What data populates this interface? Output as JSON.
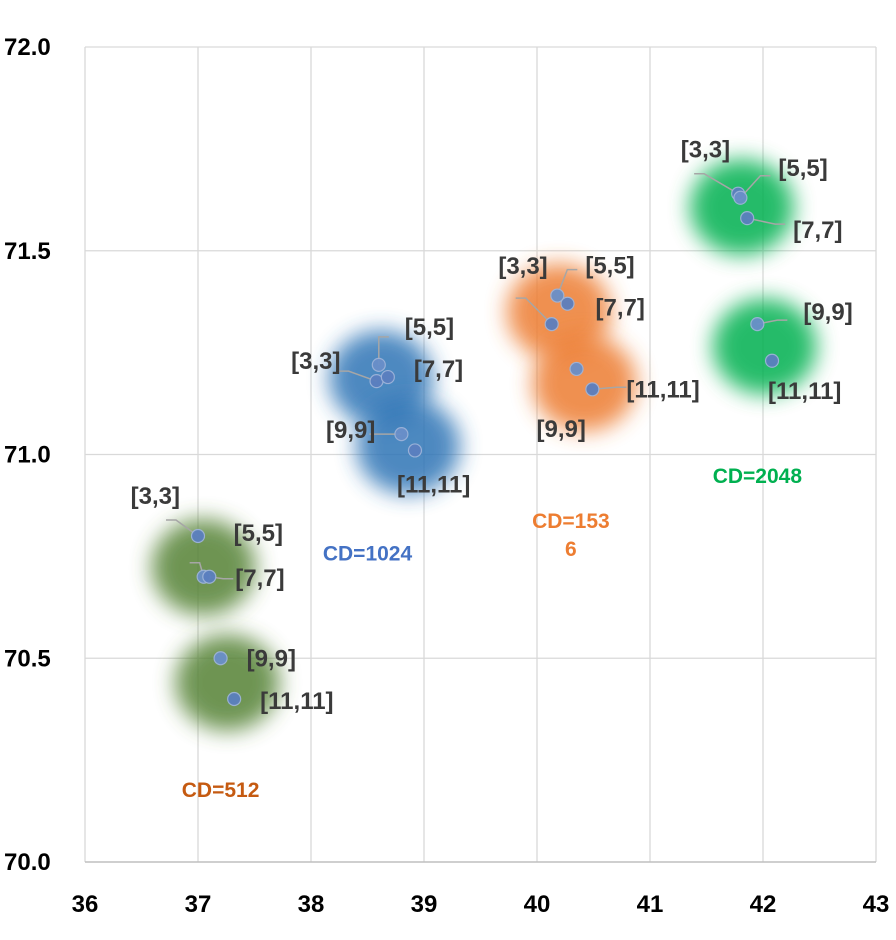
{
  "chart_data": {
    "type": "scatter",
    "title": "",
    "xlabel": "",
    "ylabel": "",
    "xlim": [
      36,
      43
    ],
    "ylim": [
      70.0,
      72.0
    ],
    "x_ticks": [
      "36",
      "37",
      "38",
      "39",
      "40",
      "41",
      "42",
      "43"
    ],
    "y_ticks": [
      "70.0",
      "70.5",
      "71.0",
      "71.5",
      "72.0"
    ],
    "grid": true,
    "legend": "none",
    "groups": [
      {
        "name": "CD=512",
        "label_lines": [
          "CD=512"
        ],
        "color": "#c55a11",
        "blob_color": "#548235",
        "points": [
          {
            "label": "[3,3]",
            "x": 37.0,
            "y": 70.8
          },
          {
            "label": "[5,5]",
            "x": 37.05,
            "y": 70.7
          },
          {
            "label": "[7,7]",
            "x": 37.1,
            "y": 70.7
          },
          {
            "label": "[9,9]",
            "x": 37.2,
            "y": 70.5
          },
          {
            "label": "[11,11]",
            "x": 37.32,
            "y": 70.4
          }
        ]
      },
      {
        "name": "CD=1024",
        "label_lines": [
          "CD=1024"
        ],
        "color": "#4472c4",
        "blob_color": "#2e75b6",
        "points": [
          {
            "label": "[3,3]",
            "x": 38.58,
            "y": 71.18
          },
          {
            "label": "[5,5]",
            "x": 38.6,
            "y": 71.22
          },
          {
            "label": "[7,7]",
            "x": 38.68,
            "y": 71.19
          },
          {
            "label": "[9,9]",
            "x": 38.8,
            "y": 71.05
          },
          {
            "label": "[11,11]",
            "x": 38.92,
            "y": 71.01
          }
        ]
      },
      {
        "name": "CD=1536",
        "label_lines": [
          "CD=153",
          "6"
        ],
        "color": "#ed7d31",
        "blob_color": "#ed7d31",
        "points": [
          {
            "label": "[3,3]",
            "x": 40.13,
            "y": 71.32
          },
          {
            "label": "[5,5]",
            "x": 40.18,
            "y": 71.39
          },
          {
            "label": "[7,7]",
            "x": 40.27,
            "y": 71.37
          },
          {
            "label": "[9,9]",
            "x": 40.35,
            "y": 71.21
          },
          {
            "label": "[11,11]",
            "x": 40.49,
            "y": 71.16
          }
        ]
      },
      {
        "name": "CD=2048",
        "label_lines": [
          "CD=2048"
        ],
        "color": "#00b050",
        "blob_color": "#00b050",
        "points": [
          {
            "label": "[3,3]",
            "x": 41.78,
            "y": 71.64
          },
          {
            "label": "[5,5]",
            "x": 41.8,
            "y": 71.63
          },
          {
            "label": "[7,7]",
            "x": 41.86,
            "y": 71.58
          },
          {
            "label": "[9,9]",
            "x": 41.95,
            "y": 71.32
          },
          {
            "label": "[11,11]",
            "x": 42.08,
            "y": 71.23
          }
        ]
      }
    ]
  }
}
